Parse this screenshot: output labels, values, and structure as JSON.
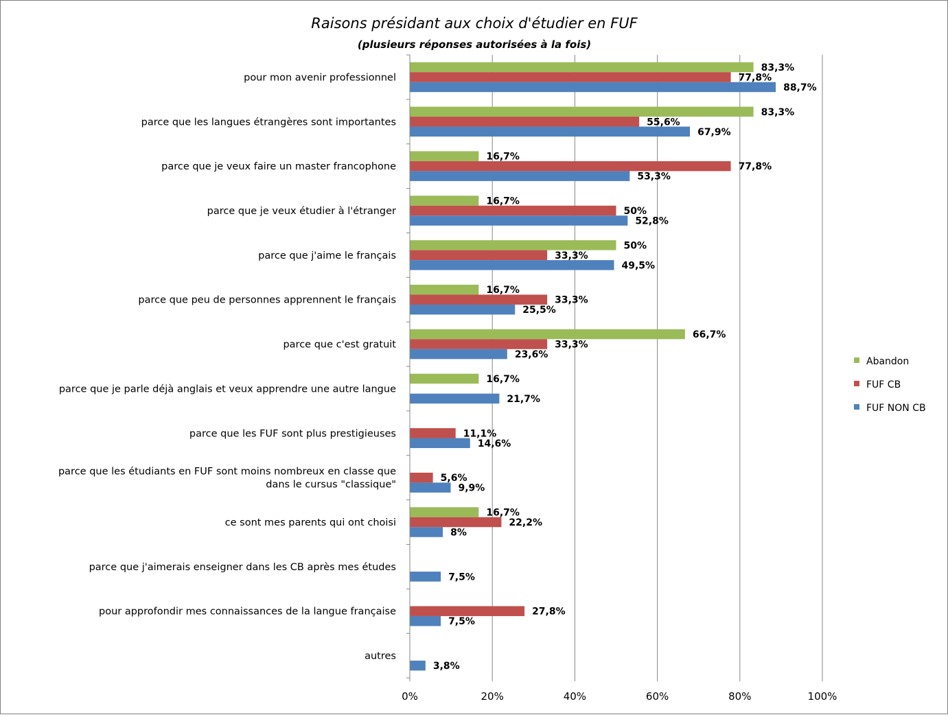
{
  "chart_data": {
    "type": "bar",
    "orientation": "horizontal",
    "title": "Raisons présidant aux choix d'étudier en FUF",
    "subtitle": "(plusieurs réponses autorisées à la fois)",
    "xlabel": "",
    "ylabel": "",
    "xlim": [
      0,
      100
    ],
    "x_ticks": [
      "0%",
      "20%",
      "40%",
      "60%",
      "80%",
      "100%"
    ],
    "grid": true,
    "legend_position": "right",
    "categories": [
      [
        "pour mon avenir professionnel"
      ],
      [
        "parce que les langues étrangères sont importantes"
      ],
      [
        "parce que je veux faire un master francophone"
      ],
      [
        "parce que je veux étudier à l'étranger"
      ],
      [
        "parce que j'aime le français"
      ],
      [
        "parce que peu de personnes apprennent le français"
      ],
      [
        "parce que c'est gratuit"
      ],
      [
        "parce que je parle déjà anglais et veux apprendre une autre langue"
      ],
      [
        "parce que les FUF sont plus prestigieuses"
      ],
      [
        "parce que les étudiants en FUF sont moins nombreux en classe que",
        "dans le cursus \"classique\""
      ],
      [
        "ce sont mes parents qui ont choisi"
      ],
      [
        "parce que j'aimerais enseigner dans les CB après mes études"
      ],
      [
        "pour approfondir mes connaissances de la langue française"
      ],
      [
        "autres"
      ]
    ],
    "series": [
      {
        "name": "Abandon",
        "color": "#9bbb59",
        "values": [
          83.3,
          83.3,
          16.7,
          16.7,
          50,
          16.7,
          66.7,
          16.7,
          null,
          null,
          16.7,
          null,
          null,
          null
        ],
        "labels": [
          "83,3%",
          "83,3%",
          "16,7%",
          "16,7%",
          "50%",
          "16,7%",
          "66,7%",
          "16,7%",
          null,
          null,
          "16,7%",
          null,
          null,
          null
        ]
      },
      {
        "name": "FUF CB",
        "color": "#c0504d",
        "values": [
          77.8,
          55.6,
          77.8,
          50,
          33.3,
          33.3,
          33.3,
          null,
          11.1,
          5.6,
          22.2,
          null,
          27.8,
          null
        ],
        "labels": [
          "77,8%",
          "55,6%",
          "77,8%",
          "50%",
          "33,3%",
          "33,3%",
          "33,3%",
          null,
          "11,1%",
          "5,6%",
          "22,2%",
          null,
          "27,8%",
          null
        ]
      },
      {
        "name": "FUF NON CB",
        "color": "#4f81bd",
        "values": [
          88.7,
          67.9,
          53.3,
          52.8,
          49.5,
          25.5,
          23.6,
          21.7,
          14.6,
          9.9,
          8,
          7.5,
          7.5,
          3.8
        ],
        "labels": [
          "88,7%",
          "67,9%",
          "53,3%",
          "52,8%",
          "49,5%",
          "25,5%",
          "23,6%",
          "21,7%",
          "14,6%",
          "9,9%",
          "8%",
          "7,5%",
          "7,5%",
          "3,8%"
        ]
      }
    ]
  }
}
